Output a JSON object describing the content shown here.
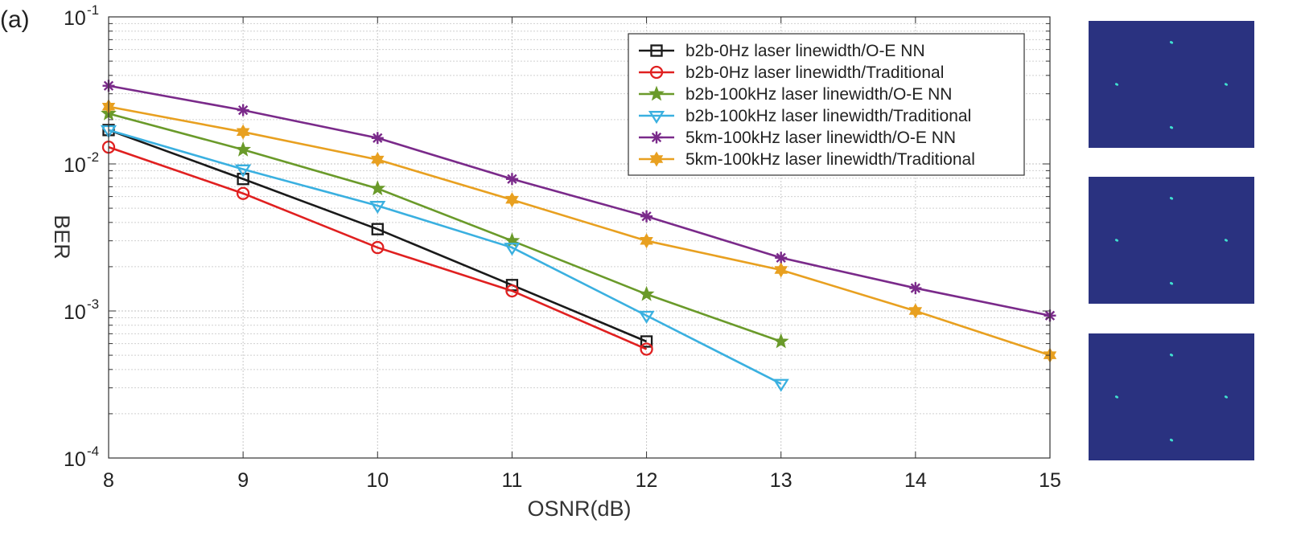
{
  "panel_label": "(a)",
  "chart_data": {
    "type": "line",
    "title": "",
    "xlabel": "OSNR(dB)",
    "ylabel": "BER",
    "xlim": [
      8,
      15
    ],
    "ylim": [
      0.0001,
      0.1
    ],
    "yscale": "log",
    "grid": true,
    "legend_position": "top-right",
    "x_ticks": [
      "8",
      "9",
      "10",
      "11",
      "12",
      "13",
      "14",
      "15"
    ],
    "y_ticks": [
      {
        "base": "10",
        "exp": "-4",
        "value": 0.0001
      },
      {
        "base": "10",
        "exp": "-3",
        "value": 0.001
      },
      {
        "base": "10",
        "exp": "-2",
        "value": 0.01
      },
      {
        "base": "10",
        "exp": "-1",
        "value": 0.1
      }
    ],
    "series": [
      {
        "name": "b2b-0Hz laser linewidth/O-E NN",
        "color": "#1a1a1a",
        "marker": "square",
        "x": [
          8,
          9,
          10,
          11,
          12
        ],
        "values": [
          0.017,
          0.0079,
          0.0036,
          0.0015,
          0.00062
        ]
      },
      {
        "name": "b2b-0Hz laser linewidth/Traditional",
        "color": "#e02020",
        "marker": "circle",
        "x": [
          8,
          9,
          10,
          11,
          12
        ],
        "values": [
          0.013,
          0.0063,
          0.0027,
          0.00137,
          0.00055
        ]
      },
      {
        "name": "b2b-100kHz laser linewidth/O-E NN",
        "color": "#6a9a2a",
        "marker": "star",
        "x": [
          8,
          9,
          10,
          11,
          12,
          13
        ],
        "values": [
          0.022,
          0.0125,
          0.0068,
          0.003,
          0.0013,
          0.00062
        ]
      },
      {
        "name": "b2b-100kHz laser linewidth/Traditional",
        "color": "#3ab0e0",
        "marker": "triangle-down",
        "x": [
          8,
          9,
          10,
          11,
          12,
          13
        ],
        "values": [
          0.017,
          0.0092,
          0.0052,
          0.0027,
          0.00093,
          0.00032
        ]
      },
      {
        "name": "5km-100kHz laser linewidth/O-E NN",
        "color": "#7a2a8a",
        "marker": "asterisk",
        "x": [
          8,
          9,
          10,
          11,
          12,
          13,
          14,
          15
        ],
        "values": [
          0.034,
          0.0232,
          0.015,
          0.0079,
          0.0044,
          0.0023,
          0.00143,
          0.00093
        ]
      },
      {
        "name": "5km-100kHz laser linewidth/Traditional",
        "color": "#e8a020",
        "marker": "hexagram",
        "x": [
          8,
          9,
          10,
          11,
          12,
          13,
          14,
          15
        ],
        "values": [
          0.0245,
          0.0165,
          0.0107,
          0.0057,
          0.003,
          0.0019,
          0.001,
          0.0005
        ]
      }
    ]
  },
  "constellation_insets": [
    {
      "name": "inset-top",
      "background": "#2a3280",
      "point_color": "#40e0d0"
    },
    {
      "name": "inset-middle",
      "background": "#2a3280",
      "point_color": "#40e0d0"
    },
    {
      "name": "inset-bottom",
      "background": "#2a3280",
      "point_color": "#40e0d0"
    }
  ]
}
